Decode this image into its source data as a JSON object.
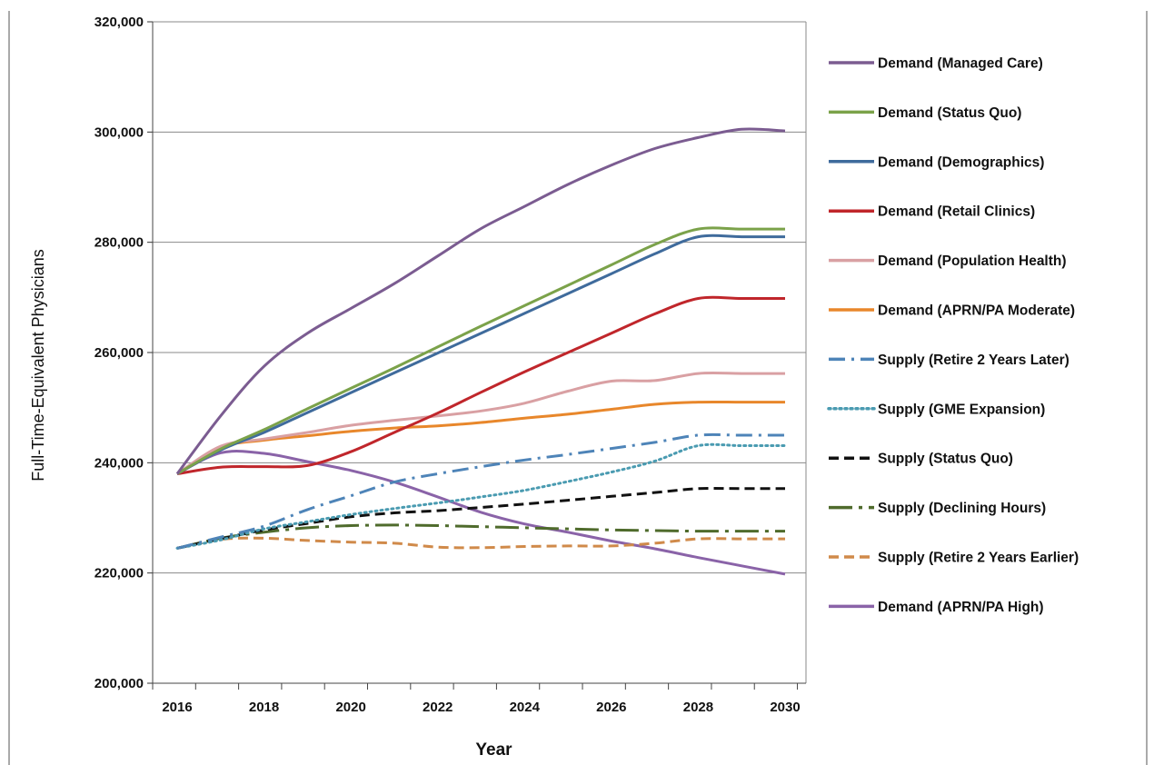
{
  "chart_data": {
    "type": "line",
    "xlabel": "Year",
    "ylabel": "Full-Time-Equivalent Physicians",
    "x": [
      2016,
      2017,
      2018,
      2019,
      2020,
      2021,
      2022,
      2023,
      2024,
      2025,
      2026,
      2027,
      2028,
      2029,
      2030
    ],
    "xticks": [
      "2016",
      "2018",
      "2020",
      "2022",
      "2024",
      "2026",
      "2028",
      "2030"
    ],
    "yticks": [
      "200,000",
      "220,000",
      "240,000",
      "260,000",
      "280,000",
      "300,000",
      "320,000"
    ],
    "ylim": [
      200000,
      320000
    ],
    "xlim": [
      2016,
      2030
    ],
    "grid": "horizontal",
    "legend_position": "right",
    "series": [
      {
        "name": "Demand (Managed Care)",
        "color": "#7b5c91",
        "style": "solid",
        "values": [
          238000,
          248500,
          257500,
          263500,
          268000,
          272500,
          277500,
          282500,
          286500,
          290500,
          294000,
          297000,
          299000,
          300500,
          300200
        ]
      },
      {
        "name": "Demand (Status Quo)",
        "color": "#7ba24a",
        "style": "solid",
        "values": [
          238000,
          242500,
          246000,
          249800,
          253500,
          257200,
          261000,
          264800,
          268500,
          272200,
          275900,
          279600,
          282400,
          282400,
          282400
        ]
      },
      {
        "name": "Demand (Demographics)",
        "color": "#3f6b9c",
        "style": "solid",
        "values": [
          238000,
          242300,
          245500,
          249100,
          252700,
          256300,
          259900,
          263500,
          267100,
          270700,
          274300,
          277900,
          281000,
          281000,
          281000
        ]
      },
      {
        "name": "Demand (Retail Clinics)",
        "color": "#c0262b",
        "style": "solid",
        "values": [
          238000,
          239200,
          239300,
          239500,
          242000,
          245500,
          249000,
          252800,
          256500,
          260000,
          263500,
          267000,
          269800,
          269800,
          269800
        ]
      },
      {
        "name": "Demand (Population Health)",
        "color": "#d9a0a3",
        "style": "solid",
        "values": [
          238000,
          243000,
          244300,
          245500,
          246800,
          247700,
          248500,
          249400,
          250800,
          253000,
          254800,
          254900,
          256200,
          256200,
          256200
        ]
      },
      {
        "name": "Demand (APRN/PA Moderate)",
        "color": "#e8872b",
        "style": "solid",
        "values": [
          238000,
          242800,
          244100,
          244900,
          245700,
          246300,
          246700,
          247300,
          248100,
          248800,
          249700,
          250600,
          251000,
          251000,
          251000
        ]
      },
      {
        "name": "Supply (Retire 2 Years Later)",
        "color": "#4e84b8",
        "style": "dashdot",
        "values": [
          224500,
          226500,
          228500,
          231500,
          234000,
          236500,
          238000,
          239300,
          240500,
          241500,
          242600,
          243700,
          245000,
          245000,
          245000
        ]
      },
      {
        "name": "Supply (GME Expansion)",
        "color": "#4a9bb1",
        "style": "dotted",
        "values": [
          224500,
          226000,
          228000,
          229300,
          230600,
          231700,
          232700,
          233800,
          235000,
          236600,
          238300,
          240300,
          243100,
          243100,
          243100
        ]
      },
      {
        "name": "Supply (Status Quo)",
        "color": "#111111",
        "style": "dashed",
        "values": [
          224500,
          226200,
          227800,
          229000,
          230200,
          230900,
          231300,
          231900,
          232500,
          233200,
          233900,
          234600,
          235300,
          235300,
          235300
        ]
      },
      {
        "name": "Supply (Declining Hours)",
        "color": "#4f6b2c",
        "style": "dashdotlong",
        "values": [
          224500,
          226300,
          227400,
          228200,
          228600,
          228700,
          228600,
          228400,
          228200,
          228000,
          227800,
          227700,
          227600,
          227600,
          227600
        ]
      },
      {
        "name": "Supply (Retire 2 Years Earlier)",
        "color": "#d08a4a",
        "style": "dashed",
        "values": [
          224500,
          226100,
          226300,
          225900,
          225600,
          225400,
          224700,
          224600,
          224800,
          224900,
          224900,
          225400,
          226200,
          226200,
          226200
        ]
      },
      {
        "name": "Demand (APRN/PA High)",
        "color": "#8a63a8",
        "style": "solid",
        "values": [
          238000,
          241800,
          241700,
          240200,
          238600,
          236500,
          233800,
          231000,
          228900,
          227400,
          225800,
          224400,
          222800,
          221300,
          219800
        ]
      }
    ]
  }
}
